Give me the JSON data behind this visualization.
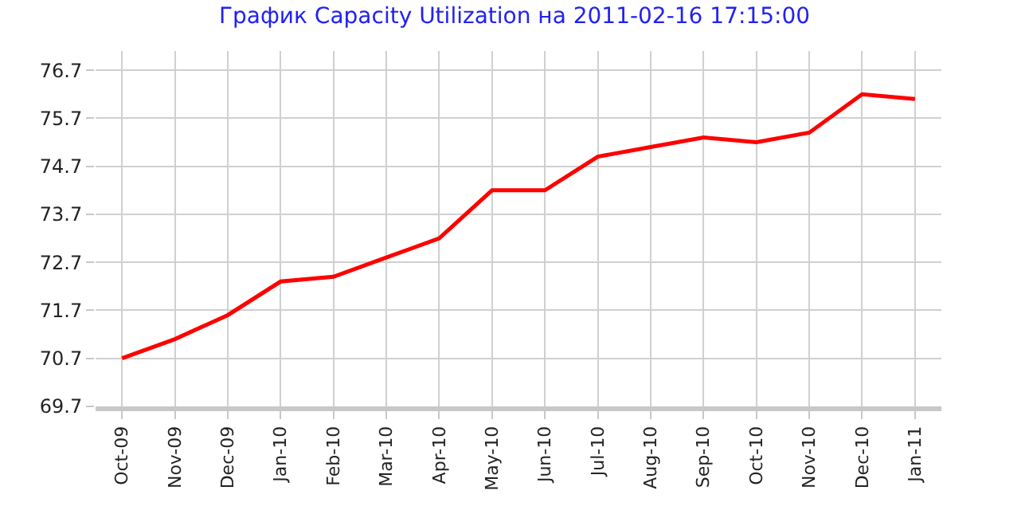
{
  "chart_data": {
    "type": "line",
    "title": "График Capacity Utilization на 2011-02-16 17:15:00",
    "categories": [
      "Oct-09",
      "Nov-09",
      "Dec-09",
      "Jan-10",
      "Feb-10",
      "Mar-10",
      "Apr-10",
      "May-10",
      "Jun-10",
      "Jul-10",
      "Aug-10",
      "Sep-10",
      "Oct-10",
      "Nov-10",
      "Dec-10",
      "Jan-11"
    ],
    "series": [
      {
        "color": "#ff0000",
        "values": [
          70.7,
          71.1,
          71.6,
          72.3,
          72.4,
          72.8,
          73.2,
          74.2,
          74.2,
          74.9,
          75.1,
          75.3,
          75.2,
          75.4,
          76.2,
          76.1
        ]
      }
    ],
    "ylim": [
      69.7,
      77.1
    ],
    "yticks": [
      69.7,
      70.7,
      71.7,
      72.7,
      73.7,
      74.7,
      75.7,
      76.7
    ],
    "grid": true,
    "marker": "none",
    "line_style": "solid"
  }
}
